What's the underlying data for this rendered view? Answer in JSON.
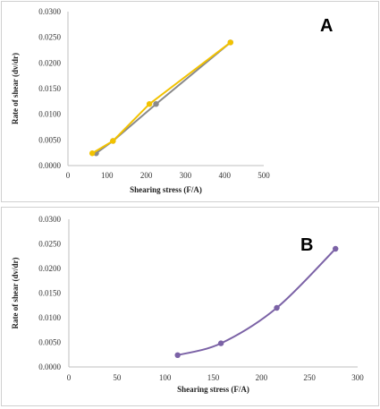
{
  "chart_data": [
    {
      "type": "line",
      "panel_label": "A",
      "xlabel": "Shearing stress (F/A)",
      "ylabel": "Rate of shear (dv/dr)",
      "xlim": [
        0,
        500
      ],
      "ylim": [
        0,
        0.03
      ],
      "xticks": [
        "0",
        "100",
        "200",
        "300",
        "400",
        "500"
      ],
      "yticks": [
        "0.0000",
        "0.0050",
        "0.0100",
        "0.0150",
        "0.0200",
        "0.0250",
        "0.0300"
      ],
      "grid": false,
      "series": [
        {
          "color": "#8a8a8a",
          "values": [
            [
              72,
              0.0024
            ],
            [
              115,
              0.0048
            ],
            [
              225,
              0.012
            ],
            [
              415,
              0.024
            ]
          ]
        },
        {
          "color": "#f2c200",
          "values": [
            [
              62,
              0.0024
            ],
            [
              115,
              0.0048
            ],
            [
              208,
              0.012
            ],
            [
              415,
              0.024
            ]
          ]
        }
      ]
    },
    {
      "type": "line",
      "panel_label": "B",
      "xlabel": "Shearing stress (F/A)",
      "ylabel": "Rate of shear (dv/dr)",
      "xlim": [
        0,
        300
      ],
      "ylim": [
        0,
        0.03
      ],
      "xticks": [
        "0",
        "50",
        "100",
        "150",
        "200",
        "250",
        "300"
      ],
      "yticks": [
        "0.0000",
        "0.0050",
        "0.0100",
        "0.0150",
        "0.0200",
        "0.0250",
        "0.0300"
      ],
      "grid": false,
      "smooth": true,
      "series": [
        {
          "color": "#7b62a6",
          "values": [
            [
              113,
              0.0024
            ],
            [
              158,
              0.0048
            ],
            [
              216,
              0.012
            ],
            [
              277,
              0.024
            ]
          ]
        }
      ]
    }
  ]
}
